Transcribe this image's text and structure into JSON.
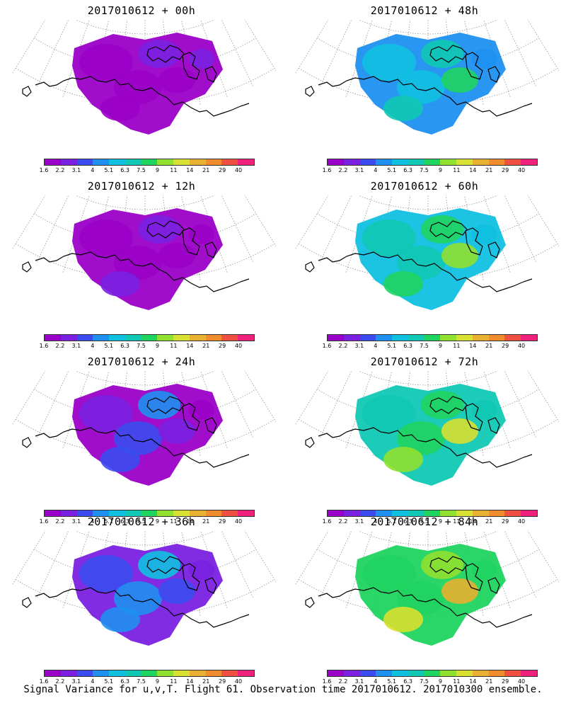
{
  "caption": "Signal Variance for u,v,T. Flight 61. Observation time 2017010612. 2017010300 ensemble.",
  "colorbar": {
    "ticks": [
      "1.6",
      "2.2",
      "3.1",
      "4",
      "5.1",
      "6.3",
      "7.5",
      "9",
      "11",
      "14",
      "21",
      "29",
      "40"
    ],
    "colors": [
      "#9b00c8",
      "#7a20e0",
      "#3a4cf0",
      "#1e90f0",
      "#10c0e0",
      "#10c8b4",
      "#20d460",
      "#90e030",
      "#d8e030",
      "#e8b030",
      "#f08c2c",
      "#f05040",
      "#f0207c"
    ]
  },
  "panels": [
    {
      "title": "2017010612 + 00h",
      "levels": [
        0,
        1,
        0,
        0,
        0,
        1
      ]
    },
    {
      "title": "2017010612 + 48h",
      "levels": [
        4,
        5,
        4,
        6,
        5,
        3
      ]
    },
    {
      "title": "2017010612 + 12h",
      "levels": [
        0,
        1,
        0,
        0,
        1,
        0
      ]
    },
    {
      "title": "2017010612 + 60h",
      "levels": [
        5,
        6,
        5,
        7,
        6,
        4
      ]
    },
    {
      "title": "2017010612 + 24h",
      "levels": [
        1,
        3,
        2,
        1,
        2,
        0
      ]
    },
    {
      "title": "2017010612 + 72h",
      "levels": [
        5,
        6,
        6,
        8,
        7,
        5
      ]
    },
    {
      "title": "2017010612 + 36h",
      "levels": [
        2,
        4,
        3,
        2,
        3,
        1
      ]
    },
    {
      "title": "2017010612 + 84h",
      "levels": [
        6,
        7,
        6,
        9,
        8,
        6
      ]
    }
  ]
}
